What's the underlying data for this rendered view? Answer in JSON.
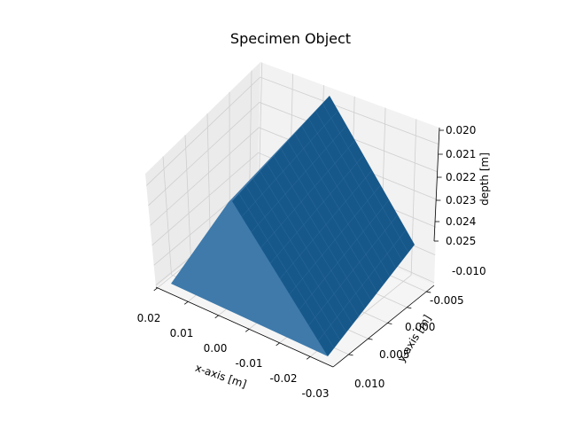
{
  "chart_data": {
    "type": "surface3d",
    "title": "Specimen Object",
    "xlabel": "x-axis [m]",
    "ylabel": "y-axis [m]",
    "zlabel": "depth [m]",
    "xlim": [
      -0.03,
      0.02
    ],
    "ylim": [
      -0.012,
      0.012
    ],
    "zlim": [
      0.025,
      0.02
    ],
    "zaxis_inverted": true,
    "xticks": [
      "0.02",
      "0.01",
      "0.00",
      "-0.01",
      "-0.02",
      "-0.03"
    ],
    "yticks": [
      "-0.010",
      "-0.005",
      "0.000",
      "0.005",
      "0.010"
    ],
    "zticks": [
      "0.020",
      "0.021",
      "0.022",
      "0.023",
      "0.024",
      "0.025"
    ],
    "grid": true,
    "surface": {
      "shape": "ridge (triangular prism) running along y",
      "ridge_x": 0.0,
      "ridge_depth": 0.02,
      "edge_x": [
        0.02,
        -0.025
      ],
      "edge_depth": 0.025,
      "color": "#1f5a8c"
    }
  },
  "colors": {
    "surface": "#17588a",
    "surface_light": "#3f7aab",
    "pane_left": "#ebebeb",
    "pane_back": "#f2f2f2",
    "pane_floor": "#f5f5f5",
    "grid": "#cfcfcf"
  }
}
